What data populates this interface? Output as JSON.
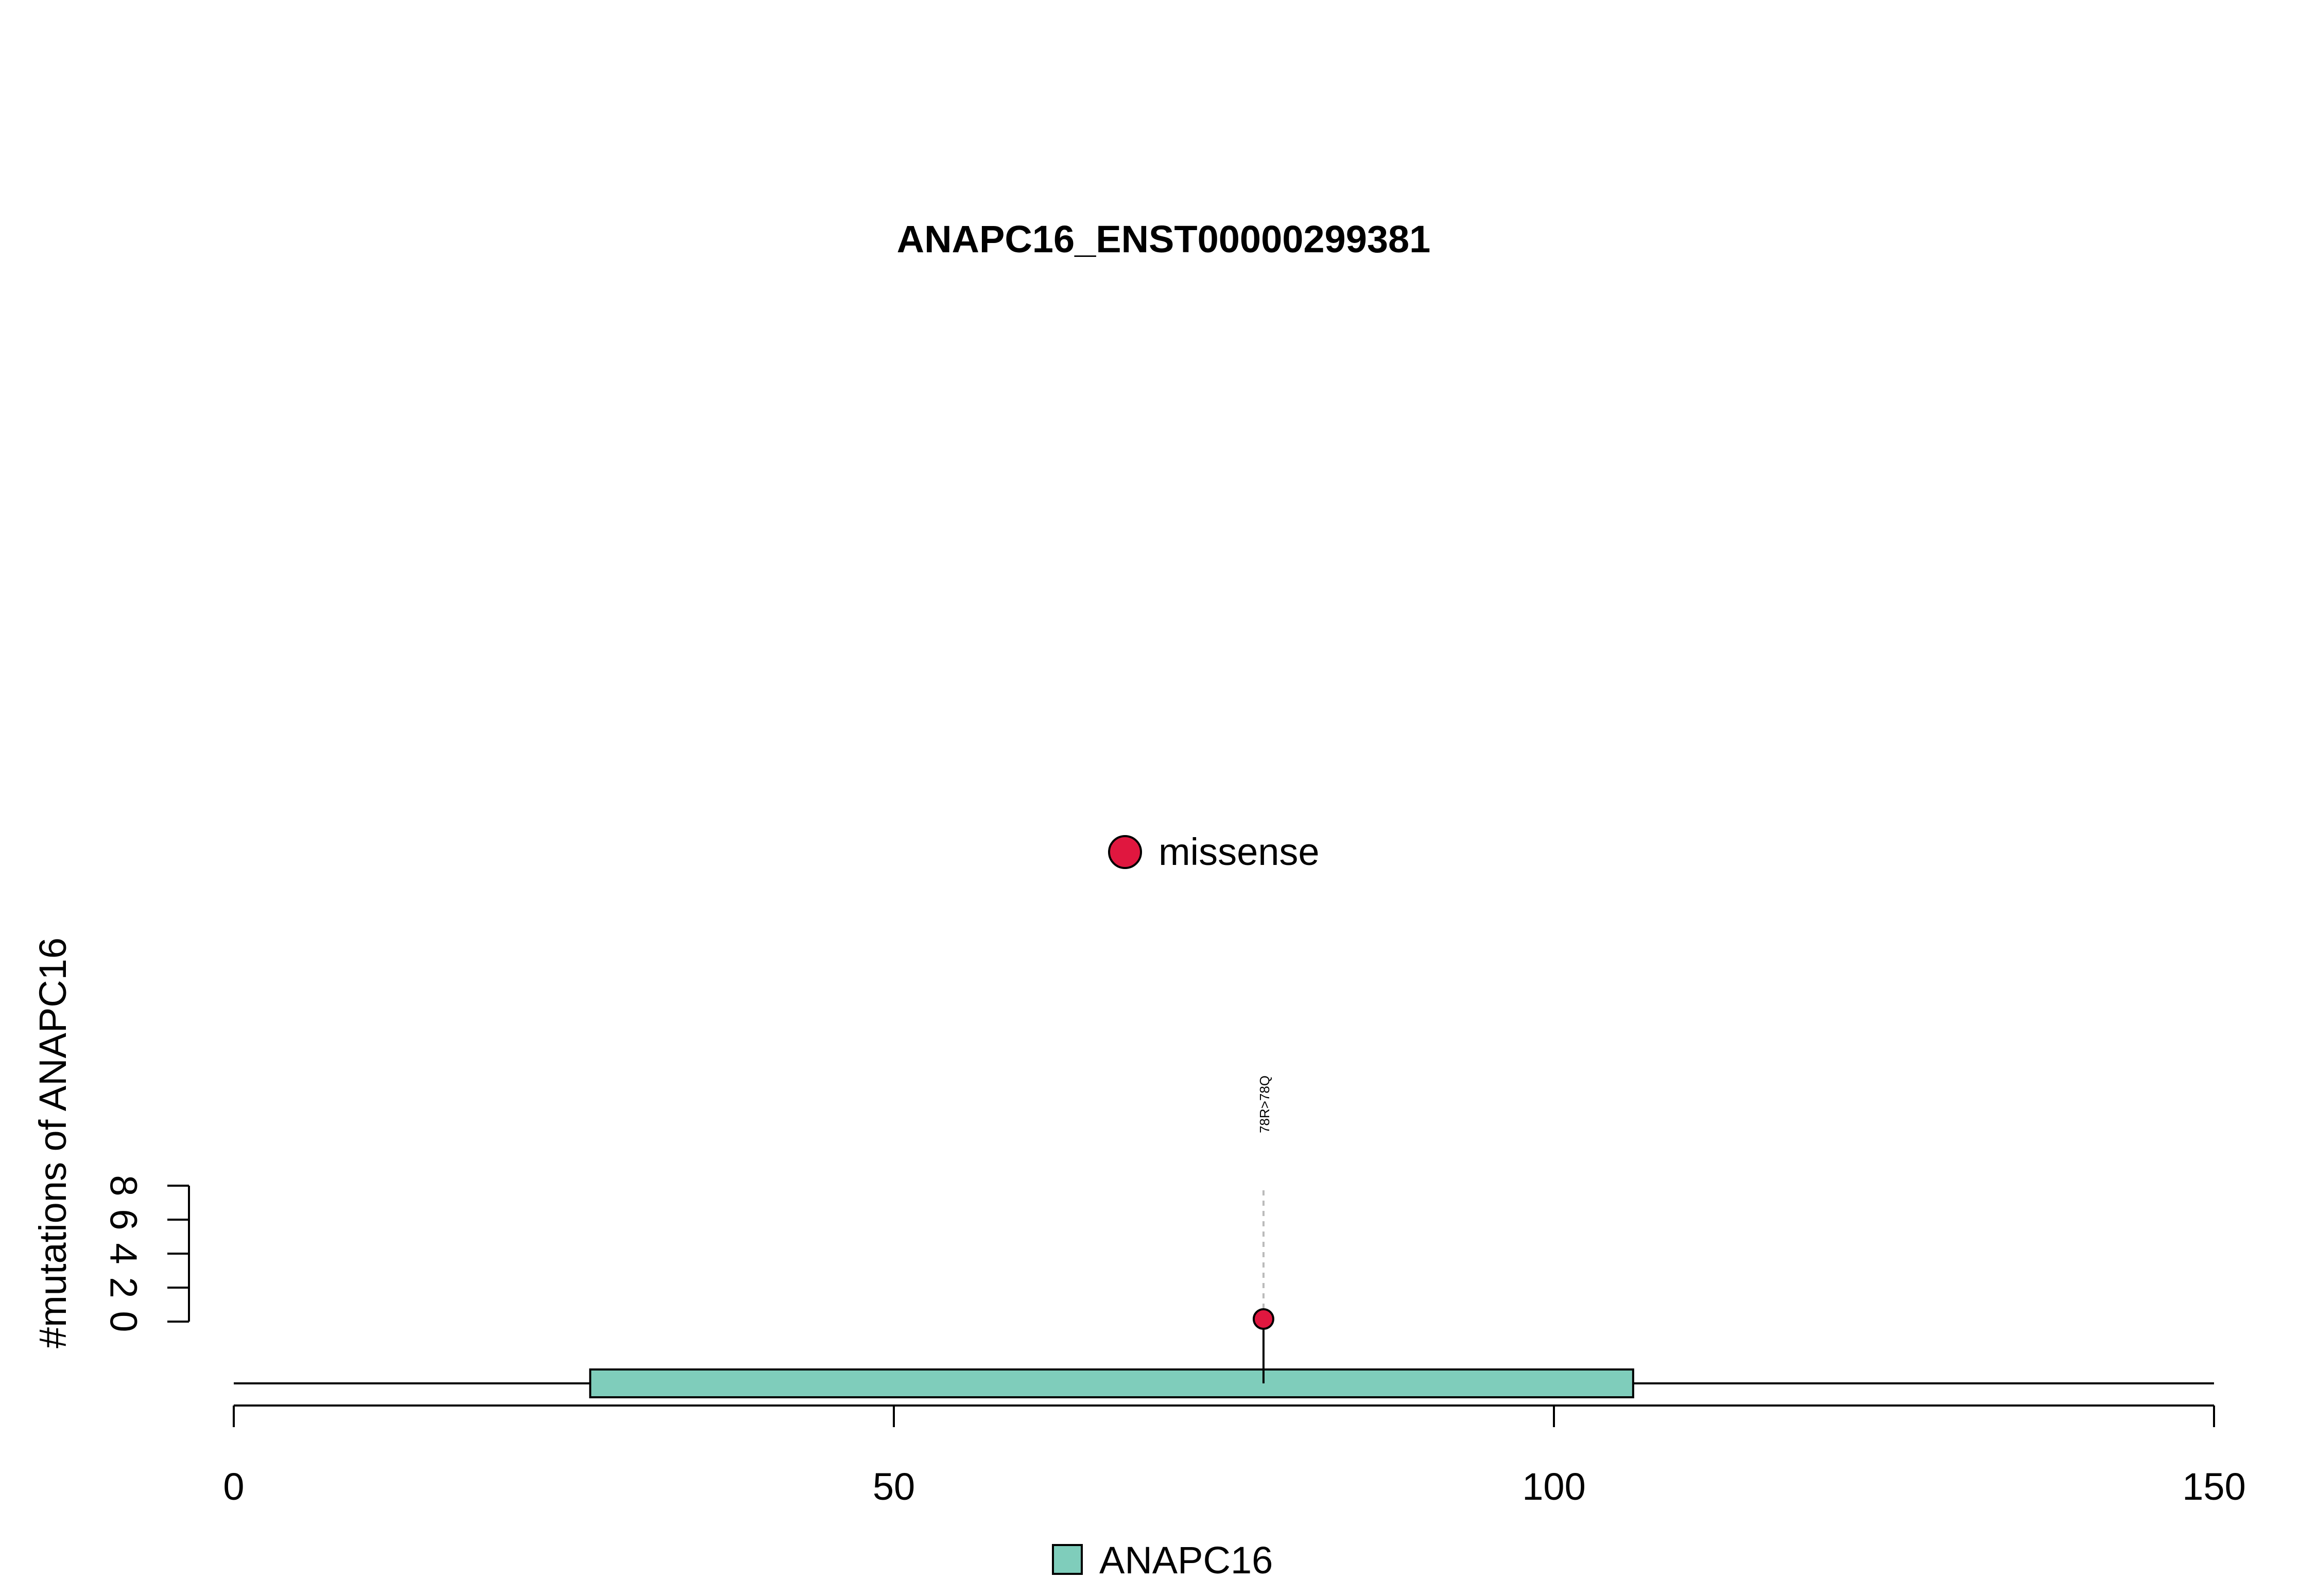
{
  "chart_data": {
    "type": "lollipop",
    "title": "ANAPC16_ENST00000299381",
    "ylabel": "#mutations of ANAPC16",
    "xlim": [
      0,
      150
    ],
    "x_ticks": [
      0,
      50,
      100,
      150
    ],
    "y_ticks": [
      0,
      2,
      4,
      6,
      8
    ],
    "ylim": [
      0,
      8
    ],
    "protein_length": 150,
    "mutation_legend": [
      {
        "label": "missense",
        "color": "#E0173F"
      }
    ],
    "domain_legend": [
      {
        "label": "ANAPC16",
        "color": "#7FCDBB"
      }
    ],
    "domains": [
      {
        "name": "ANAPC16",
        "start": 27,
        "end": 106,
        "color": "#7FCDBB"
      }
    ],
    "mutations": [
      {
        "position": 78,
        "count": 1,
        "label": "78R>78Q",
        "type": "missense",
        "color": "#E0173F"
      }
    ]
  }
}
